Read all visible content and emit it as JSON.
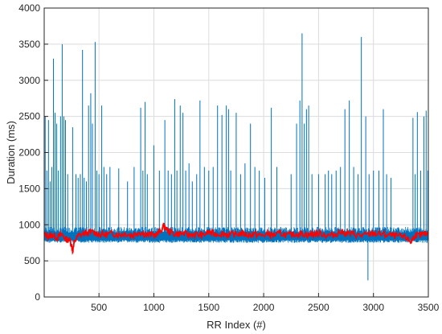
{
  "chart_data": {
    "type": "line",
    "xlabel": "RR Index (#)",
    "ylabel": "Duration (ms)",
    "xlim": [
      1,
      3500
    ],
    "ylim": [
      0,
      4000
    ],
    "x_ticks": [
      500,
      1000,
      1500,
      2000,
      2500,
      3000,
      3500
    ],
    "y_ticks": [
      0,
      500,
      1000,
      1500,
      2000,
      2500,
      3000,
      3500,
      4000
    ],
    "x_tick_labels": [
      "500",
      "1000",
      "1500",
      "2000",
      "2500",
      "3000",
      "3500"
    ],
    "y_tick_labels": [
      "0",
      "500",
      "1000",
      "1500",
      "2000",
      "2500",
      "3000",
      "3500",
      "4000"
    ],
    "grid": true,
    "series": [
      {
        "color": "#0072bd",
        "baseline": 850,
        "spikes": [
          {
            "x": 10,
            "y": 2500
          },
          {
            "x": 25,
            "y": 1750
          },
          {
            "x": 40,
            "y": 2450
          },
          {
            "x": 55,
            "y": 1600
          },
          {
            "x": 70,
            "y": 1800
          },
          {
            "x": 85,
            "y": 3300
          },
          {
            "x": 100,
            "y": 2550
          },
          {
            "x": 115,
            "y": 2400
          },
          {
            "x": 130,
            "y": 1750
          },
          {
            "x": 150,
            "y": 2500
          },
          {
            "x": 165,
            "y": 3500
          },
          {
            "x": 180,
            "y": 2500
          },
          {
            "x": 195,
            "y": 2450
          },
          {
            "x": 215,
            "y": 1700
          },
          {
            "x": 260,
            "y": 2350
          },
          {
            "x": 290,
            "y": 1700
          },
          {
            "x": 310,
            "y": 1650
          },
          {
            "x": 330,
            "y": 1700
          },
          {
            "x": 350,
            "y": 3420
          },
          {
            "x": 365,
            "y": 1650
          },
          {
            "x": 385,
            "y": 1600
          },
          {
            "x": 405,
            "y": 2650
          },
          {
            "x": 425,
            "y": 2820
          },
          {
            "x": 440,
            "y": 2400
          },
          {
            "x": 465,
            "y": 3530
          },
          {
            "x": 480,
            "y": 1750
          },
          {
            "x": 500,
            "y": 1700
          },
          {
            "x": 525,
            "y": 2650
          },
          {
            "x": 545,
            "y": 1800
          },
          {
            "x": 570,
            "y": 1700
          },
          {
            "x": 600,
            "y": 1800
          },
          {
            "x": 680,
            "y": 1780
          },
          {
            "x": 760,
            "y": 1600
          },
          {
            "x": 820,
            "y": 1800
          },
          {
            "x": 880,
            "y": 2620
          },
          {
            "x": 900,
            "y": 1750
          },
          {
            "x": 920,
            "y": 2700
          },
          {
            "x": 940,
            "y": 1700
          },
          {
            "x": 1000,
            "y": 2100
          },
          {
            "x": 1050,
            "y": 1750
          },
          {
            "x": 1100,
            "y": 2450
          },
          {
            "x": 1130,
            "y": 1750
          },
          {
            "x": 1160,
            "y": 1700
          },
          {
            "x": 1190,
            "y": 2740
          },
          {
            "x": 1210,
            "y": 1750
          },
          {
            "x": 1240,
            "y": 2650
          },
          {
            "x": 1265,
            "y": 2550
          },
          {
            "x": 1290,
            "y": 1750
          },
          {
            "x": 1320,
            "y": 1850
          },
          {
            "x": 1350,
            "y": 1600
          },
          {
            "x": 1390,
            "y": 1700
          },
          {
            "x": 1420,
            "y": 2720
          },
          {
            "x": 1460,
            "y": 1800
          },
          {
            "x": 1500,
            "y": 1750
          },
          {
            "x": 1540,
            "y": 1800
          },
          {
            "x": 1580,
            "y": 2650
          },
          {
            "x": 1620,
            "y": 2520
          },
          {
            "x": 1660,
            "y": 2650
          },
          {
            "x": 1680,
            "y": 2600
          },
          {
            "x": 1700,
            "y": 1750
          },
          {
            "x": 1750,
            "y": 2550
          },
          {
            "x": 1790,
            "y": 1700
          },
          {
            "x": 1830,
            "y": 1850
          },
          {
            "x": 1880,
            "y": 2400
          },
          {
            "x": 1920,
            "y": 1800
          },
          {
            "x": 1960,
            "y": 1750
          },
          {
            "x": 2010,
            "y": 1650
          },
          {
            "x": 2070,
            "y": 2620
          },
          {
            "x": 2120,
            "y": 1800
          },
          {
            "x": 2250,
            "y": 1700
          },
          {
            "x": 2300,
            "y": 2400
          },
          {
            "x": 2330,
            "y": 2720
          },
          {
            "x": 2350,
            "y": 3650
          },
          {
            "x": 2370,
            "y": 2400
          },
          {
            "x": 2390,
            "y": 2600
          },
          {
            "x": 2410,
            "y": 2650
          },
          {
            "x": 2440,
            "y": 1700
          },
          {
            "x": 2500,
            "y": 1700
          },
          {
            "x": 2560,
            "y": 1700
          },
          {
            "x": 2590,
            "y": 1750
          },
          {
            "x": 2620,
            "y": 1700
          },
          {
            "x": 2660,
            "y": 1750
          },
          {
            "x": 2700,
            "y": 1800
          },
          {
            "x": 2740,
            "y": 2600
          },
          {
            "x": 2780,
            "y": 2720
          },
          {
            "x": 2820,
            "y": 1800
          },
          {
            "x": 2860,
            "y": 1700
          },
          {
            "x": 2890,
            "y": 3600
          },
          {
            "x": 2930,
            "y": 2500
          },
          {
            "x": 2960,
            "y": 1700
          },
          {
            "x": 3000,
            "y": 1750
          },
          {
            "x": 3050,
            "y": 1750
          },
          {
            "x": 3090,
            "y": 2600
          },
          {
            "x": 3120,
            "y": 1700
          },
          {
            "x": 3160,
            "y": 1650
          },
          {
            "x": 3360,
            "y": 2480
          },
          {
            "x": 3380,
            "y": 1700
          },
          {
            "x": 3400,
            "y": 2560
          },
          {
            "x": 3430,
            "y": 1750
          },
          {
            "x": 3460,
            "y": 2500
          },
          {
            "x": 3480,
            "y": 2580
          },
          {
            "x": 3495,
            "y": 1750
          }
        ],
        "dips": [
          {
            "x": 2950,
            "y": 230
          }
        ]
      },
      {
        "color": "#ff0000",
        "points": [
          [
            1,
            870
          ],
          [
            40,
            840
          ],
          [
            80,
            860
          ],
          [
            120,
            820
          ],
          [
            160,
            870
          ],
          [
            200,
            800
          ],
          [
            240,
            780
          ],
          [
            260,
            640
          ],
          [
            280,
            780
          ],
          [
            320,
            860
          ],
          [
            380,
            880
          ],
          [
            440,
            900
          ],
          [
            500,
            870
          ],
          [
            560,
            860
          ],
          [
            620,
            880
          ],
          [
            680,
            860
          ],
          [
            740,
            880
          ],
          [
            800,
            850
          ],
          [
            860,
            900
          ],
          [
            920,
            870
          ],
          [
            980,
            860
          ],
          [
            1040,
            870
          ],
          [
            1090,
            980
          ],
          [
            1140,
            900
          ],
          [
            1200,
            870
          ],
          [
            1260,
            880
          ],
          [
            1320,
            860
          ],
          [
            1380,
            870
          ],
          [
            1440,
            850
          ],
          [
            1500,
            900
          ],
          [
            1560,
            870
          ],
          [
            1620,
            880
          ],
          [
            1680,
            860
          ],
          [
            1740,
            870
          ],
          [
            1800,
            880
          ],
          [
            1860,
            860
          ],
          [
            1920,
            870
          ],
          [
            1980,
            850
          ],
          [
            2040,
            870
          ],
          [
            2100,
            860
          ],
          [
            2160,
            880
          ],
          [
            2220,
            850
          ],
          [
            2280,
            870
          ],
          [
            2340,
            880
          ],
          [
            2400,
            860
          ],
          [
            2460,
            870
          ],
          [
            2520,
            880
          ],
          [
            2580,
            850
          ],
          [
            2640,
            860
          ],
          [
            2700,
            900
          ],
          [
            2760,
            880
          ],
          [
            2820,
            870
          ],
          [
            2880,
            850
          ],
          [
            2940,
            860
          ],
          [
            3000,
            880
          ],
          [
            3060,
            870
          ],
          [
            3120,
            860
          ],
          [
            3180,
            850
          ],
          [
            3240,
            840
          ],
          [
            3300,
            820
          ],
          [
            3340,
            760
          ],
          [
            3380,
            860
          ],
          [
            3420,
            850
          ],
          [
            3460,
            870
          ],
          [
            3500,
            880
          ]
        ]
      }
    ]
  }
}
